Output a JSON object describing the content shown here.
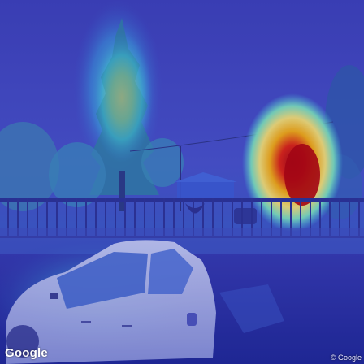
{
  "watermark": {
    "text": "Google"
  },
  "copyright": {
    "text": "© Google"
  },
  "colors": {
    "base": "#2a2f9a",
    "sky": "#3a44b8",
    "hot": "#c00000",
    "warm": "#ffd23a",
    "cool": "#38d6d0"
  }
}
